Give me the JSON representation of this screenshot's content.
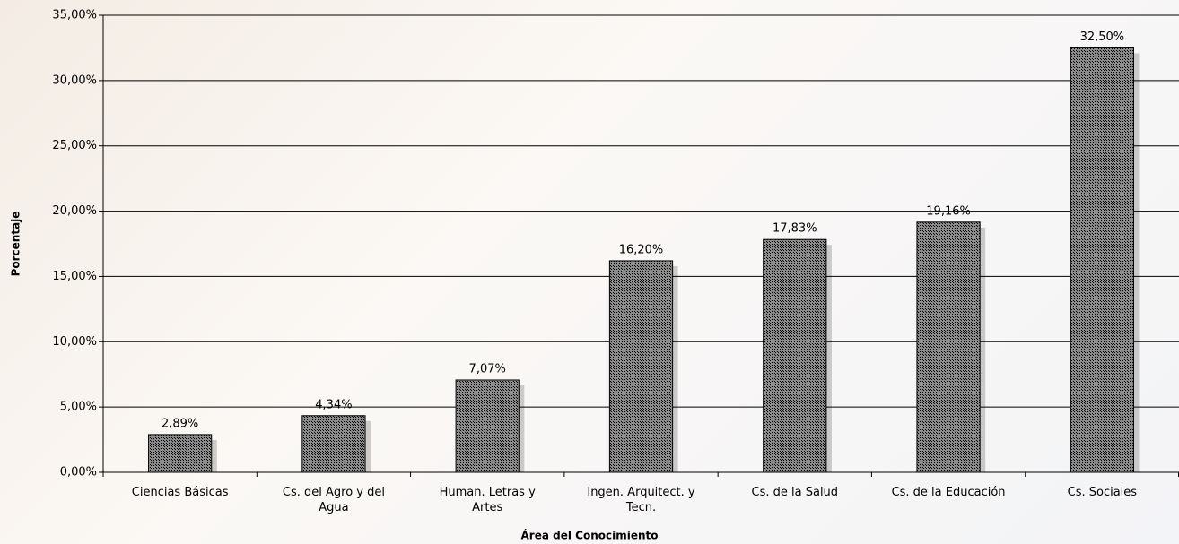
{
  "chart_data": {
    "type": "bar",
    "x_label": "Área del Conocimiento",
    "y_label": "Porcentaje",
    "categories": [
      "Ciencias Básicas",
      "Cs. del Agro y del Agua",
      "Human. Letras y Artes",
      "Ingen. Arquitect. y Tecn.",
      "Cs. de la Salud",
      "Cs. de la Educación",
      "Cs. Sociales"
    ],
    "values": [
      2.89,
      4.34,
      7.07,
      16.2,
      17.83,
      19.16,
      32.5
    ],
    "value_labels": [
      "2,89%",
      "4,34%",
      "7,07%",
      "16,20%",
      "17,83%",
      "19,16%",
      "32,50%"
    ],
    "color": "#8c8c8c",
    "ylim": [
      0,
      35
    ],
    "yticks": [
      {
        "value": 0,
        "label": "0,00%"
      },
      {
        "value": 5,
        "label": "5,00%"
      },
      {
        "value": 10,
        "label": "10,00%"
      },
      {
        "value": 15,
        "label": "15,00%"
      },
      {
        "value": 20,
        "label": "20,00%"
      },
      {
        "value": 25,
        "label": "25,00%"
      },
      {
        "value": 30,
        "label": "30,00%"
      },
      {
        "value": 35,
        "label": "35,00%"
      }
    ],
    "grid": true
  }
}
